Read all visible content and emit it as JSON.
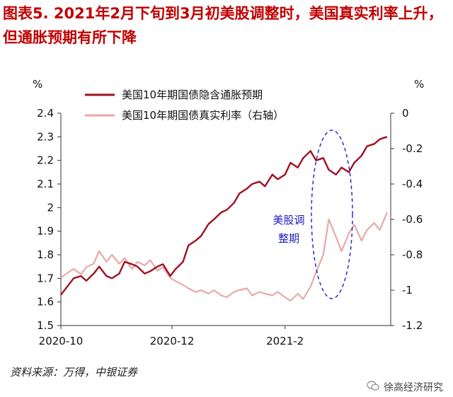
{
  "figure": {
    "title": "图表5. 2021年2月下旬到3月初美股调整时，美国真实利率上升，但通胀预期有所下降",
    "source": "资料来源：万得，中银证券",
    "watermark": "徐高经济研究"
  },
  "chart_data": {
    "type": "line",
    "left_unit": "%",
    "right_unit": "%",
    "x_ticks": [
      "2020-10",
      "2020-12",
      "2021-2"
    ],
    "x_range": [
      "2020-10-01",
      "2021-03-31"
    ],
    "y_left": {
      "min": 1.5,
      "max": 2.4,
      "ticks": [
        "1.5",
        "1.6",
        "1.7",
        "1.8",
        "1.9",
        "2",
        "2.1",
        "2.2",
        "2.3",
        "2.4"
      ]
    },
    "y_right": {
      "min": -1.2,
      "max": 0.0,
      "ticks": [
        "-1.2",
        "-1",
        "-0.8",
        "-0.6",
        "-0.4",
        "-0.2",
        "0"
      ]
    },
    "annotation": {
      "line1": "美股调",
      "line2": "整期"
    },
    "series": [
      {
        "name": "美国10年期国债隐含通胀预期",
        "axis": "left",
        "color": "#a01020",
        "x": [
          "2020-10-01",
          "2020-10-05",
          "2020-10-08",
          "2020-10-12",
          "2020-10-15",
          "2020-10-19",
          "2020-10-22",
          "2020-10-26",
          "2020-10-29",
          "2020-11-02",
          "2020-11-05",
          "2020-11-09",
          "2020-11-12",
          "2020-11-16",
          "2020-11-19",
          "2020-11-23",
          "2020-11-26",
          "2020-11-30",
          "2020-12-03",
          "2020-12-07",
          "2020-12-10",
          "2020-12-14",
          "2020-12-17",
          "2020-12-21",
          "2020-12-24",
          "2020-12-28",
          "2020-12-31",
          "2021-01-04",
          "2021-01-07",
          "2021-01-11",
          "2021-01-14",
          "2021-01-18",
          "2021-01-21",
          "2021-01-25",
          "2021-01-28",
          "2021-02-01",
          "2021-02-04",
          "2021-02-08",
          "2021-02-11",
          "2021-02-15",
          "2021-02-18",
          "2021-02-22",
          "2021-02-25",
          "2021-03-01",
          "2021-03-04",
          "2021-03-08",
          "2021-03-11",
          "2021-03-15",
          "2021-03-18",
          "2021-03-22",
          "2021-03-25",
          "2021-03-29"
        ],
        "y": [
          1.63,
          1.67,
          1.7,
          1.71,
          1.69,
          1.72,
          1.75,
          1.71,
          1.7,
          1.72,
          1.77,
          1.76,
          1.75,
          1.72,
          1.73,
          1.75,
          1.76,
          1.71,
          1.74,
          1.77,
          1.84,
          1.86,
          1.88,
          1.93,
          1.95,
          1.98,
          1.99,
          2.02,
          2.06,
          2.08,
          2.1,
          2.11,
          2.09,
          2.14,
          2.12,
          2.14,
          2.19,
          2.17,
          2.21,
          2.24,
          2.2,
          2.21,
          2.16,
          2.14,
          2.17,
          2.15,
          2.19,
          2.22,
          2.26,
          2.27,
          2.29,
          2.3
        ]
      },
      {
        "name": "美国10年期国债真实利率（右轴）",
        "axis": "right",
        "color": "#e8a8a8",
        "x": [
          "2020-10-01",
          "2020-10-05",
          "2020-10-08",
          "2020-10-12",
          "2020-10-15",
          "2020-10-19",
          "2020-10-22",
          "2020-10-26",
          "2020-10-29",
          "2020-11-02",
          "2020-11-05",
          "2020-11-09",
          "2020-11-12",
          "2020-11-16",
          "2020-11-19",
          "2020-11-23",
          "2020-11-26",
          "2020-11-30",
          "2020-12-03",
          "2020-12-07",
          "2020-12-10",
          "2020-12-14",
          "2020-12-17",
          "2020-12-21",
          "2020-12-24",
          "2020-12-28",
          "2020-12-31",
          "2021-01-04",
          "2021-01-07",
          "2021-01-11",
          "2021-01-14",
          "2021-01-18",
          "2021-01-21",
          "2021-01-25",
          "2021-01-28",
          "2021-02-01",
          "2021-02-04",
          "2021-02-08",
          "2021-02-11",
          "2021-02-15",
          "2021-02-18",
          "2021-02-22",
          "2021-02-25",
          "2021-03-01",
          "2021-03-04",
          "2021-03-08",
          "2021-03-11",
          "2021-03-15",
          "2021-03-18",
          "2021-03-22",
          "2021-03-25",
          "2021-03-29"
        ],
        "y": [
          -0.93,
          -0.9,
          -0.88,
          -0.91,
          -0.87,
          -0.85,
          -0.78,
          -0.84,
          -0.8,
          -0.85,
          -0.82,
          -0.88,
          -0.84,
          -0.86,
          -0.83,
          -0.89,
          -0.87,
          -0.93,
          -0.95,
          -0.97,
          -0.99,
          -1.01,
          -1.0,
          -1.02,
          -1.0,
          -1.03,
          -1.04,
          -1.01,
          -1.0,
          -0.99,
          -1.03,
          -1.01,
          -1.02,
          -1.03,
          -1.01,
          -1.04,
          -1.06,
          -1.02,
          -1.05,
          -0.98,
          -0.9,
          -0.8,
          -0.6,
          -0.7,
          -0.78,
          -0.68,
          -0.63,
          -0.72,
          -0.66,
          -0.62,
          -0.66,
          -0.56
        ]
      }
    ]
  }
}
